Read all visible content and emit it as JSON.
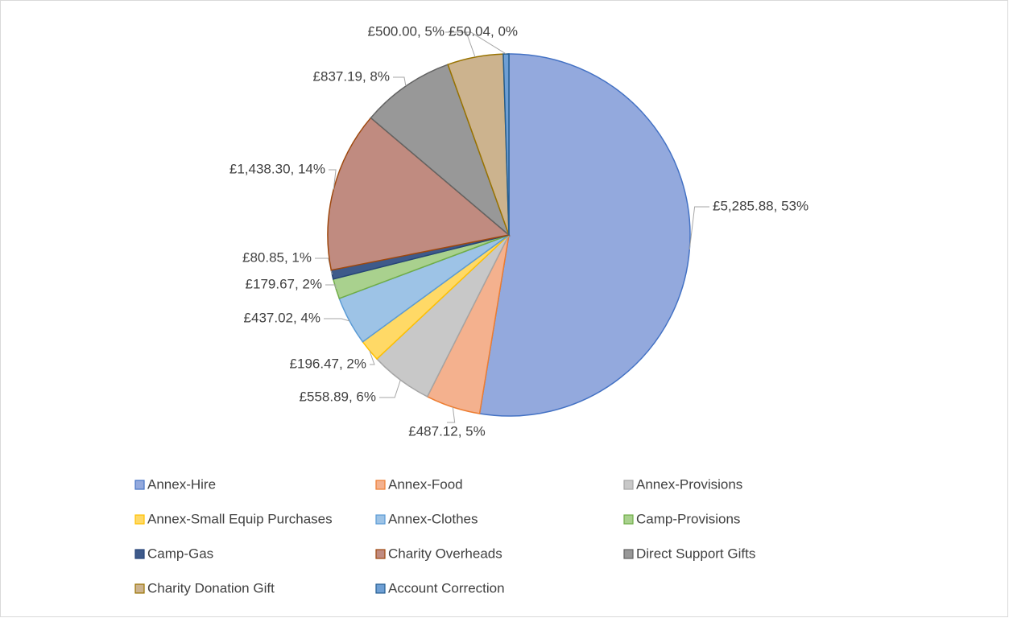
{
  "chart_data": {
    "type": "pie",
    "categories": [
      "Annex-Hire",
      "Annex-Food",
      "Annex-Provisions",
      "Annex-Small Equip Purchases",
      "Annex-Clothes",
      "Camp-Provisions",
      "Camp-Gas",
      "Charity Overheads",
      "Direct Support Gifts",
      "Charity Donation Gift",
      "Account Correction"
    ],
    "values": [
      5285.88,
      487.12,
      558.89,
      196.47,
      437.02,
      179.67,
      80.85,
      1438.3,
      837.19,
      500.0,
      50.04
    ],
    "value_labels": [
      "£5,285.88,  53%",
      "£487.12,  5%",
      "£558.89,  6%",
      "£196.47,  2%",
      "£437.02,  4%",
      "£179.67,  2%",
      "£80.85,  1%",
      "£1,438.30,  14%",
      "£837.19,  8%",
      "£500.00,  5%",
      "£50.04,  0%"
    ],
    "colors": [
      "#93a9dd",
      "#f4b18e",
      "#c8c8c8",
      "#ffd966",
      "#9dc3e6",
      "#a9d18e",
      "#3e5a8a",
      "#c08b80",
      "#989898",
      "#ccb38e",
      "#6e9fd4"
    ],
    "edge_colors": [
      "#4472c4",
      "#ed7d31",
      "#a5a5a5",
      "#ffc000",
      "#5b9bd5",
      "#70ad47",
      "#264478",
      "#9e480e",
      "#636363",
      "#997300",
      "#255e91"
    ],
    "legend": "bottom"
  }
}
